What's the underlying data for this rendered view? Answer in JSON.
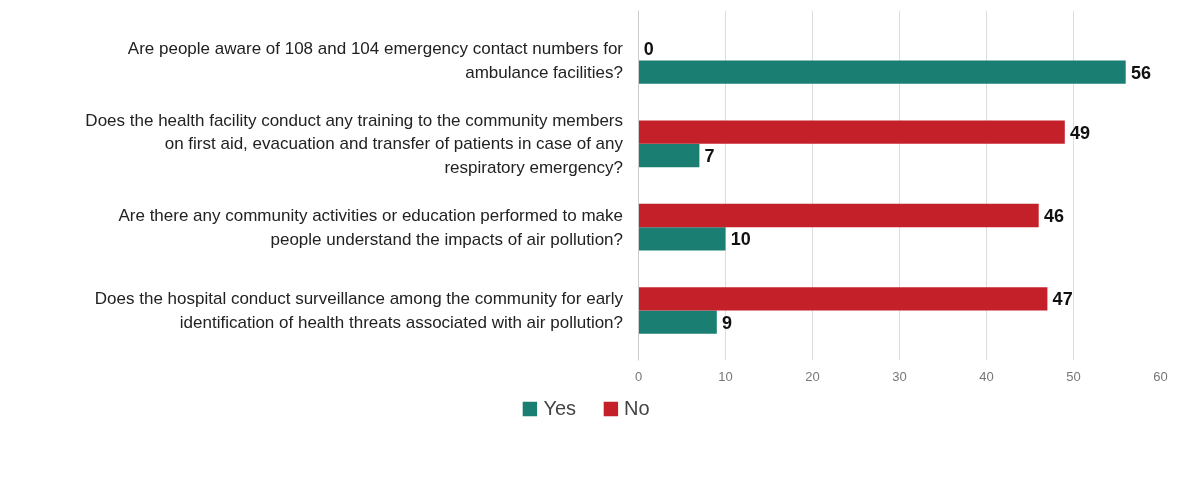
{
  "chart_data": {
    "type": "bar",
    "orientation": "horizontal",
    "categories": [
      "Are people aware of 108 and 104 emergency contact numbers for ambulance facilities?",
      "Does the health facility conduct any training to the community members on first aid, evacuation and transfer of patients in case of any respiratory emergency?",
      "Are there any community activities or education performed to make people understand the impacts of air pollution?",
      "Does the hospital conduct surveillance among the community for early identification of health threats associated with air pollution?"
    ],
    "series": [
      {
        "name": "Yes",
        "color": "#1a7f72",
        "values": [
          56,
          7,
          10,
          9
        ]
      },
      {
        "name": "No",
        "color": "#c4202a",
        "values": [
          0,
          49,
          46,
          47
        ]
      }
    ],
    "xlim": [
      0,
      60
    ],
    "xticks": [
      0,
      10,
      20,
      30,
      40,
      50,
      60
    ],
    "grid": "x",
    "legend": "bottom",
    "data_labels": true
  }
}
